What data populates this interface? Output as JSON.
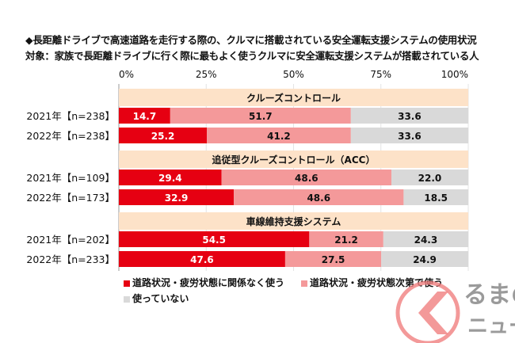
{
  "chart_data": {
    "type": "bar",
    "stacked": true,
    "orientation": "horizontal",
    "title": "◆長距離ドライブで高速道路を走行する際の、クルマに搭載されている安全運転支援システムの使用状況",
    "subtitle": "対象：家族で長距離ドライブに行く際に最もよく使うクルマに安全運転支援システムが搭載されている人",
    "xlim": [
      0,
      100
    ],
    "xticks": [
      "0%",
      "25%",
      "50%",
      "75%",
      "100%"
    ],
    "grid": true,
    "legend_placement": "bottom",
    "series": [
      {
        "name": "道路状況・疲労状態に関係なく使う",
        "color": "#e60012"
      },
      {
        "name": "道路状況・疲労状態次第で使う",
        "color": "#f4999a"
      },
      {
        "name": "使っていない",
        "color": "#d9d9d9"
      }
    ],
    "groups": [
      {
        "name": "クルーズコントロール",
        "rows": [
          {
            "label": "2021年【n=238】",
            "values": [
              14.7,
              51.7,
              33.6
            ]
          },
          {
            "label": "2022年【n=238】",
            "values": [
              25.2,
              41.2,
              33.6
            ]
          }
        ]
      },
      {
        "name": "追従型クルーズコントロール（ACC）",
        "rows": [
          {
            "label": "2021年【n=109】",
            "values": [
              29.4,
              48.6,
              22.0
            ]
          },
          {
            "label": "2022年【n=173】",
            "values": [
              32.9,
              48.6,
              18.5
            ]
          }
        ]
      },
      {
        "name": "車線維持支援システム",
        "rows": [
          {
            "label": "2021年【n=202】",
            "values": [
              54.5,
              21.2,
              24.3
            ]
          },
          {
            "label": "2022年【n=233】",
            "values": [
              47.6,
              27.5,
              24.9
            ]
          }
        ]
      }
    ],
    "group_header_color": "#fde2c8"
  },
  "watermark": {
    "text": "くるまのニュース"
  }
}
